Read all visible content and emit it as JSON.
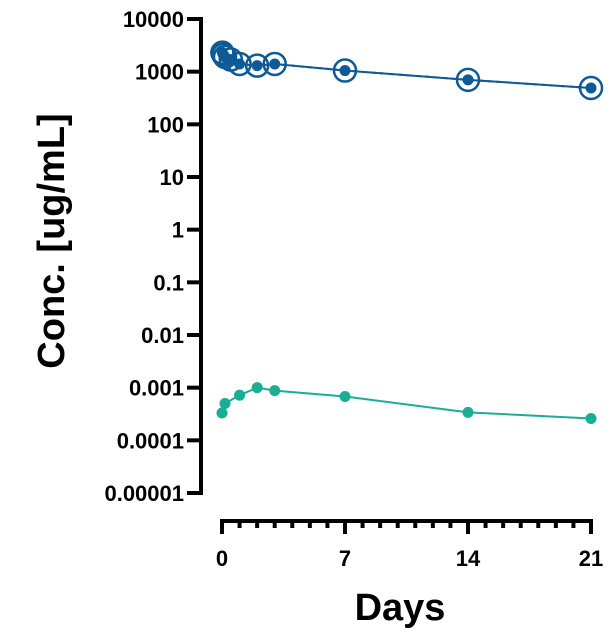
{
  "chart_data": {
    "type": "scatter",
    "xlabel": "Days",
    "ylabel": "Conc. [ug/mL]",
    "xlim": [
      0,
      21
    ],
    "ylim": [
      1e-05,
      10000
    ],
    "yscale": "log",
    "x_ticks": [
      0,
      7,
      14,
      21
    ],
    "x_tick_labels": [
      "0",
      "7",
      "14",
      "21"
    ],
    "x_minor_tick_step": 1,
    "y_ticks": [
      10000,
      1000,
      100,
      10,
      1,
      0.1,
      0.01,
      0.001,
      0.0001,
      1e-05
    ],
    "y_tick_labels": [
      "10000",
      "1000",
      "100",
      "10",
      "1",
      "0.1",
      "0.01",
      "0.001",
      "0.0001",
      "0.00001"
    ],
    "grid": false,
    "legend": "none",
    "series": [
      {
        "color": "#0e5a97",
        "marker": "filled-circle",
        "line": "solid",
        "x": [
          0.02,
          0.08,
          0.17,
          0.5,
          1,
          2,
          3,
          7,
          14,
          21
        ],
        "y": [
          2300,
          2100,
          1900,
          1700,
          1400,
          1300,
          1400,
          1050,
          700,
          490
        ]
      },
      {
        "color": "#0e5a97",
        "marker": "open-ring",
        "line": "dashed",
        "x": [
          0.02,
          0.08,
          0.17,
          0.5,
          1,
          2,
          3,
          7,
          14,
          21
        ],
        "y": [
          2300,
          2100,
          1900,
          1700,
          1400,
          1300,
          1400,
          1050,
          700,
          490
        ]
      },
      {
        "color": "#1aae94",
        "marker": "filled-circle",
        "line": "solid",
        "x": [
          0,
          0.17,
          1,
          2,
          3,
          7,
          14,
          21
        ],
        "y": [
          0.00033,
          0.0005,
          0.00072,
          0.001,
          0.00088,
          0.00068,
          0.00034,
          0.00026
        ]
      }
    ]
  }
}
